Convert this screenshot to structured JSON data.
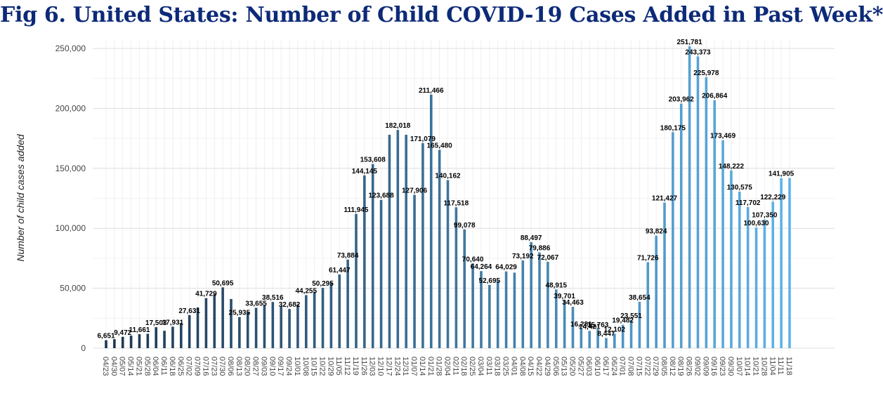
{
  "chart_data": {
    "type": "bar",
    "title": "Fig 6. United States: Number of Child COVID-19 Cases Added in Past Week*",
    "xlabel": "",
    "ylabel": "Number of child cases added",
    "ylim": [
      0,
      260000
    ],
    "yticks": [
      0,
      50000,
      100000,
      150000,
      200000,
      250000
    ],
    "ytick_labels": [
      "0",
      "50,000",
      "100,000",
      "150,000",
      "200,000",
      "250,000"
    ],
    "grid": true,
    "color_gradient": [
      "#1d3550",
      "#5fb3e8"
    ],
    "categories": [
      "04/23",
      "04/30",
      "05/07",
      "05/14",
      "05/21",
      "05/28",
      "06/04",
      "06/11",
      "06/18",
      "06/25",
      "07/02",
      "07/09",
      "07/16",
      "07/23",
      "07/30",
      "08/06",
      "08/13",
      "08/20",
      "08/27",
      "09/03",
      "09/10",
      "09/17",
      "09/24",
      "10/01",
      "10/08",
      "10/15",
      "10/22",
      "10/29",
      "11/05",
      "11/12",
      "11/19",
      "11/26",
      "12/03",
      "12/10",
      "12/17",
      "12/24",
      "12/31",
      "01/07",
      "01/14",
      "01/21",
      "01/28",
      "02/04",
      "02/11",
      "02/18",
      "02/25",
      "03/04",
      "03/11",
      "03/18",
      "03/25",
      "04/01",
      "04/08",
      "04/15",
      "04/22",
      "04/29",
      "05/06",
      "05/13",
      "05/20",
      "05/27",
      "06/03",
      "06/10",
      "06/17",
      "06/24",
      "07/01",
      "07/08",
      "07/15",
      "07/22",
      "07/29",
      "08/05",
      "08/12",
      "08/19",
      "08/26",
      "09/02",
      "09/09",
      "09/16",
      "09/23",
      "09/30",
      "10/07",
      "10/14",
      "10/21",
      "10/28",
      "11/04",
      "11/11",
      "11/18"
    ],
    "values": [
      6651,
      7500,
      9472,
      10500,
      11661,
      12000,
      17503,
      14500,
      17931,
      21000,
      27631,
      34000,
      41729,
      45000,
      50695,
      41000,
      25935,
      30000,
      33655,
      36000,
      38516,
      35000,
      32682,
      36500,
      44255,
      47000,
      50295,
      55000,
      61447,
      73884,
      111945,
      144145,
      153608,
      123688,
      178000,
      182018,
      178000,
      127906,
      171079,
      211466,
      165480,
      140162,
      117518,
      99078,
      70640,
      64264,
      52695,
      56000,
      64029,
      63000,
      73192,
      88497,
      79886,
      72067,
      48915,
      39701,
      34463,
      16281,
      14421,
      15763,
      8447,
      12102,
      19482,
      23551,
      38654,
      71726,
      93824,
      121427,
      180175,
      203962,
      251781,
      243373,
      225978,
      206864,
      173469,
      148222,
      130575,
      117702,
      100630,
      107350,
      122229,
      141905,
      141905
    ],
    "data_labels": [
      "6,651",
      "",
      "9,472",
      "",
      "11,661",
      "",
      "17,503",
      "",
      "17,931",
      "",
      "27,631",
      "",
      "41,729",
      "",
      "50,695",
      "",
      "25,935",
      "",
      "33,655",
      "",
      "38,516",
      "",
      "32,682",
      "",
      "44,255",
      "",
      "50,295",
      "",
      "61,447",
      "73,884",
      "111,945",
      "144,145",
      "153,608",
      "123,688",
      "",
      "182,018",
      "",
      "127,906",
      "171,079",
      "211,466",
      "165,480",
      "140,162",
      "117,518",
      "99,078",
      "70,640",
      "64,264",
      "52,695",
      "",
      "64,029",
      "",
      "73,192",
      "88,497",
      "79,886",
      "72,067",
      "48,915",
      "39,701",
      "34,463",
      "16,281",
      "14,421",
      "15,763",
      "8,447",
      "12,102",
      "19,482",
      "23,551",
      "38,654",
      "71,726",
      "93,824",
      "121,427",
      "180,175",
      "203,962",
      "251,781",
      "243,373",
      "225,978",
      "206,864",
      "173,469",
      "148,222",
      "130,575",
      "117,702",
      "100,630",
      "107,350",
      "122,229",
      "141,905",
      ""
    ]
  }
}
